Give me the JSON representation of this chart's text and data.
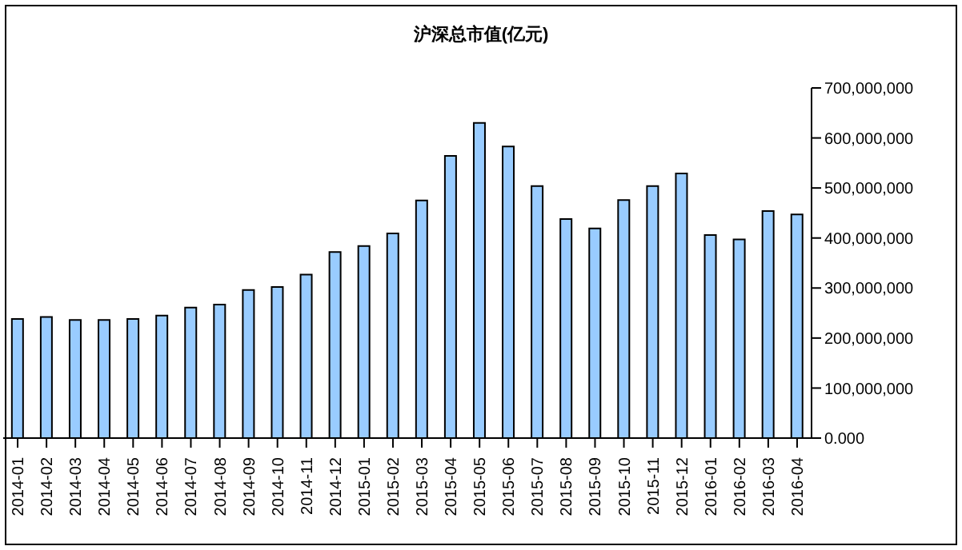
{
  "chart_data": {
    "type": "bar",
    "title": "沪深总市值(亿元)",
    "categories": [
      "2014-01",
      "2014-02",
      "2014-03",
      "2014-04",
      "2014-05",
      "2014-06",
      "2014-07",
      "2014-08",
      "2014-09",
      "2014-10",
      "2014-11",
      "2014-12",
      "2015-01",
      "2015-02",
      "2015-03",
      "2015-04",
      "2015-05",
      "2015-06",
      "2015-07",
      "2015-08",
      "2015-09",
      "2015-10",
      "2015-11",
      "2015-12",
      "2016-01",
      "2016-02",
      "2016-03",
      "2016-04"
    ],
    "values": [
      238000000,
      242000000,
      236000000,
      236000000,
      238000000,
      245000000,
      261000000,
      267000000,
      296000000,
      302000000,
      327000000,
      372000000,
      384000000,
      409000000,
      475000000,
      564000000,
      630000000,
      583000000,
      504000000,
      438000000,
      419000000,
      476000000,
      504000000,
      529000000,
      406000000,
      397000000,
      454000000,
      447000000
    ],
    "color": "#99ccff",
    "ylim": [
      0,
      700000000
    ],
    "yticks": [
      {
        "value": 0,
        "label": "0.000"
      },
      {
        "value": 100000000,
        "label": "100,000,000"
      },
      {
        "value": 200000000,
        "label": "200,000,000"
      },
      {
        "value": 300000000,
        "label": "300,000,000"
      },
      {
        "value": 400000000,
        "label": "400,000,000"
      },
      {
        "value": 500000000,
        "label": "500,000,000"
      },
      {
        "value": 600000000,
        "label": "600,000,000"
      },
      {
        "value": 700000000,
        "label": "700,000,000"
      }
    ]
  }
}
